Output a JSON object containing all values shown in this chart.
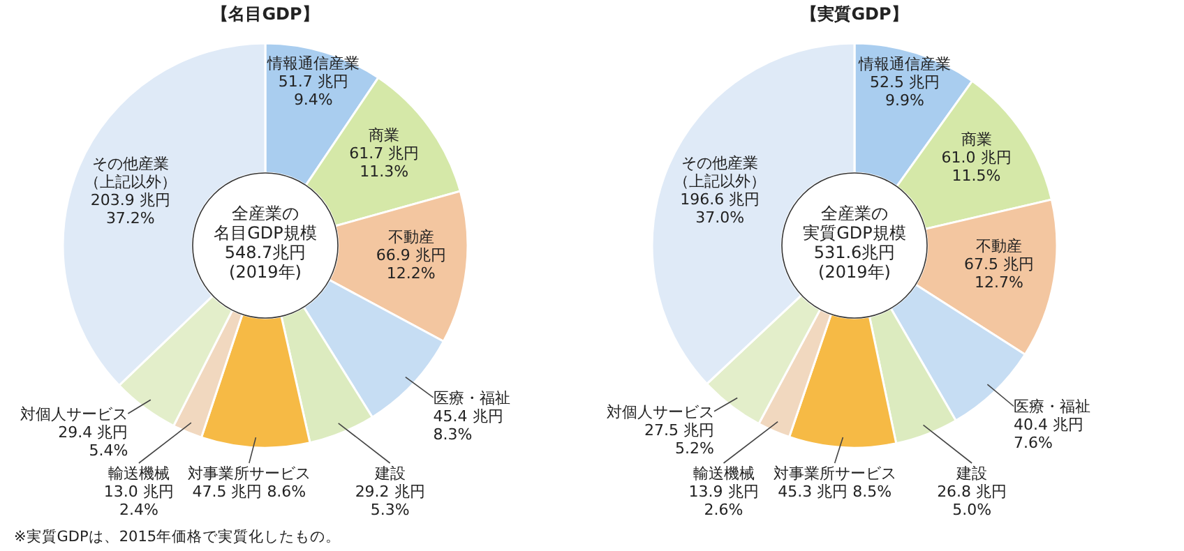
{
  "chart_data": [
    {
      "type": "donut",
      "title": "【名目GDP】",
      "categories": [
        "情報通信産業",
        "商業",
        "不動産",
        "医療・福祉",
        "建設",
        "対事業所サービス",
        "輸送機械",
        "対個人サービス",
        "その他産業（上記以外）"
      ],
      "values": [
        51.7,
        61.7,
        66.9,
        45.4,
        29.2,
        47.5,
        13.0,
        29.4,
        203.9
      ],
      "value_labels": [
        "51.7 兆円\n9.4%",
        "61.7 兆円\n11.3%",
        "66.9 兆円\n12.2%",
        "45.4 兆円\n8.3%",
        "29.2 兆円\n5.3%",
        "47.5 兆円 8.6%",
        "13.0 兆円\n2.4%",
        "29.4 兆円\n5.4%",
        "203.9 兆円\n37.2%"
      ],
      "colors": [
        "#a9cdef",
        "#d5e8a8",
        "#f3c6a0",
        "#c6ddf3",
        "#dcebbf",
        "#f6ba45",
        "#f1d8bf",
        "#e3eeca",
        "#dfeaf7"
      ],
      "annotations": [
        "全産業の",
        "名目GDP規模",
        "548.7兆円",
        "(2019年)"
      ]
    },
    {
      "type": "donut",
      "title": "【実質GDP】",
      "categories": [
        "情報通信産業",
        "商業",
        "不動産",
        "医療・福祉",
        "建設",
        "対事業所サービス",
        "輸送機械",
        "対個人サービス",
        "その他産業（上記以外）"
      ],
      "values": [
        52.5,
        61.0,
        67.5,
        40.4,
        26.8,
        45.3,
        13.9,
        27.5,
        196.6
      ],
      "value_labels": [
        "52.5 兆円\n9.9%",
        "61.0 兆円\n11.5%",
        "67.5 兆円\n12.7%",
        "40.4 兆円\n7.6%",
        "26.8 兆円\n5.0%",
        "45.3 兆円 8.5%",
        "13.9 兆円\n2.6%",
        "27.5 兆円\n5.2%",
        "196.6 兆円\n37.0%"
      ],
      "colors": [
        "#a9cdef",
        "#d5e8a8",
        "#f3c6a0",
        "#c6ddf3",
        "#dcebbf",
        "#f6ba45",
        "#f1d8bf",
        "#e3eeca",
        "#dfeaf7"
      ],
      "annotations": [
        "全産業の",
        "実質GDP規模",
        "531.6兆円",
        "(2019年)"
      ]
    },
    {
      "type": "other",
      "annotations": [
        "※実質GDPは、2015年価格で実質化したもの。"
      ]
    }
  ]
}
